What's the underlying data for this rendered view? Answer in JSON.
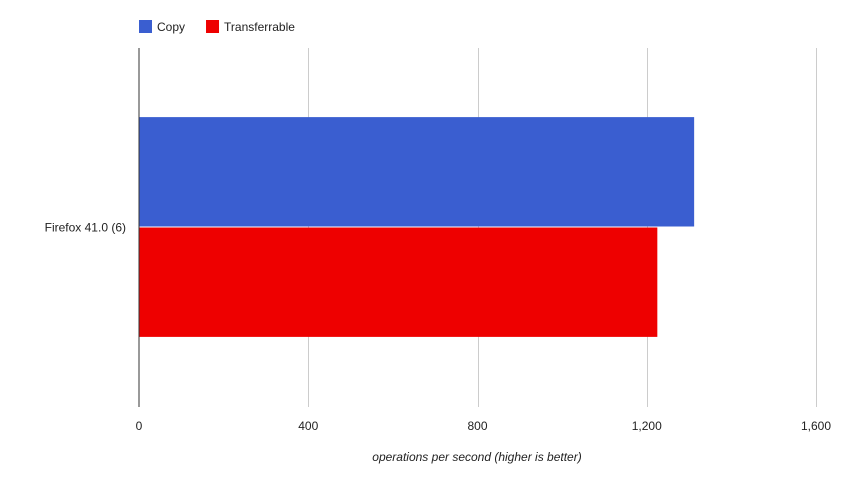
{
  "chart_data": {
    "type": "bar",
    "orientation": "horizontal",
    "categories": [
      "Firefox 41.0 (6)"
    ],
    "series": [
      {
        "name": "Copy",
        "values": [
          1312
        ],
        "color": "#3a5ed0"
      },
      {
        "name": "Transferrable",
        "values": [
          1225
        ],
        "color": "#ee0000"
      }
    ],
    "xlim": [
      0,
      1600
    ],
    "xticks": [
      0,
      400,
      800,
      1200,
      1600
    ],
    "xtick_labels": [
      "0",
      "400",
      "800",
      "1,200",
      "1,600"
    ],
    "xlabel": "operations per second (higher is better)",
    "ylabel": "",
    "grid": true,
    "legend_position": "top-left"
  }
}
